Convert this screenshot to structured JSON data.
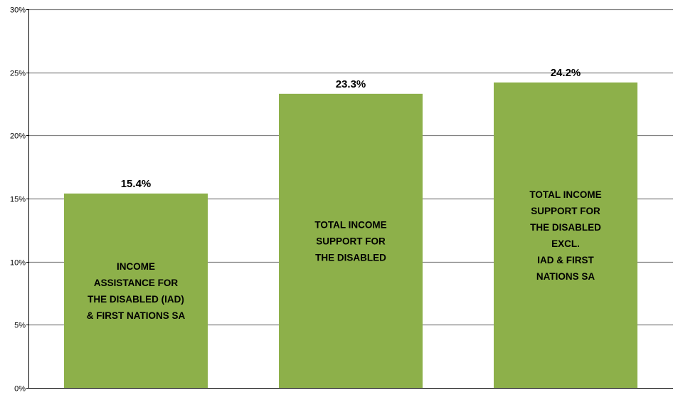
{
  "chart_data": {
    "type": "bar",
    "categories": [
      [
        "INCOME",
        "ASSISTANCE FOR",
        "THE DISABLED (IAD)",
        "& FIRST NATIONS SA"
      ],
      [
        "TOTAL INCOME",
        "SUPPORT FOR",
        "THE DISABLED"
      ],
      [
        "TOTAL INCOME",
        "SUPPORT FOR",
        "THE DISABLED",
        "EXCL.",
        "IAD & FIRST",
        "NATIONS SA"
      ]
    ],
    "values": [
      15.4,
      23.3,
      24.2
    ],
    "value_labels": [
      "15.4%",
      "23.3%",
      "24.2%"
    ],
    "ylim": [
      0,
      30
    ],
    "yticks": [
      0,
      5,
      10,
      15,
      20,
      25,
      30
    ],
    "ytick_labels": [
      "0%",
      "5%",
      "10%",
      "15%",
      "20%",
      "25%",
      "30%"
    ],
    "grid": true,
    "bar_color": "#8db04a",
    "grid_color": "#808080",
    "title": "",
    "xlabel": "",
    "ylabel": ""
  }
}
